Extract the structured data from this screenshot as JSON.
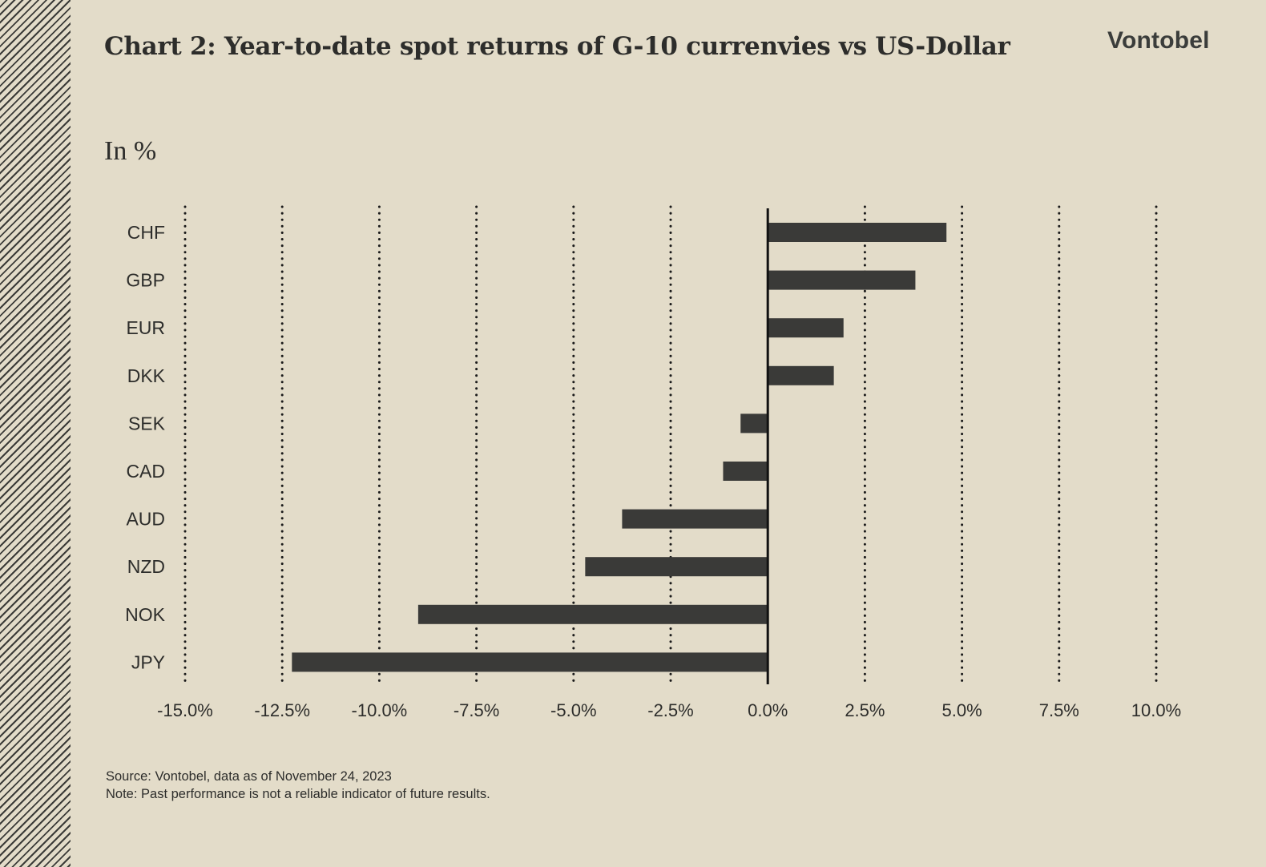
{
  "header": {
    "title": "Chart 2: Year-to-date spot returns of G-10 currenvies vs US-Dollar",
    "logo_text": "Vontobel"
  },
  "footer": {
    "source": "Source: Vontobel, data as of November 24, 2023",
    "note": "Note: Past performance is not a reliable indicator of future results."
  },
  "chart_data": {
    "type": "bar",
    "orientation": "horizontal",
    "title": "Chart 2: Year-to-date spot returns of G-10 currenvies vs US-Dollar",
    "ylabel": "In %",
    "xlabel": "",
    "categories": [
      "CHF",
      "GBP",
      "EUR",
      "DKK",
      "SEK",
      "CAD",
      "AUD",
      "NZD",
      "NOK",
      "JPY"
    ],
    "values": [
      4.6,
      3.8,
      1.95,
      1.7,
      -0.7,
      -1.15,
      -3.75,
      -4.7,
      -9.0,
      -12.25
    ],
    "xlim": [
      -15,
      10
    ],
    "xticks": [
      -15,
      -12.5,
      -10,
      -7.5,
      -5,
      -2.5,
      0,
      2.5,
      5,
      7.5,
      10
    ],
    "xtick_labels": [
      "-15.0%",
      "-12.5%",
      "-10.0%",
      "-7.5%",
      "-5.0%",
      "-2.5%",
      "0.0%",
      "2.5%",
      "5.0%",
      "7.5%",
      "10.0%"
    ],
    "grid": "vertical dotted",
    "colors": {
      "bar": "#3a3a38",
      "axis": "#111111",
      "grid": "#1a1a1a",
      "text": "#2d2d2b",
      "background": "#e3dcc9"
    }
  }
}
